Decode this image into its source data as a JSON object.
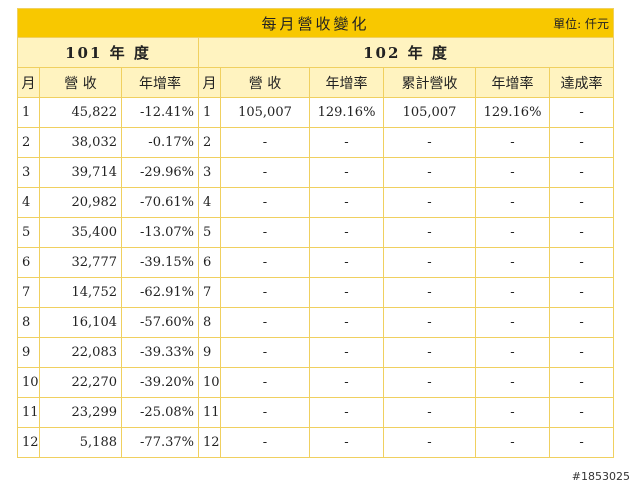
{
  "title": "每月營收變化",
  "unit": "單位: 仟元",
  "year_a": "101 年 度",
  "year_b": "102 年 度",
  "headers_a": [
    "月",
    "營 收",
    "年增率"
  ],
  "headers_b": [
    "月",
    "營 收",
    "年增率",
    "累計營收",
    "年增率",
    "達成率"
  ],
  "rows": [
    {
      "m_a": "1",
      "rev_a": "45,822",
      "yoy_a": "-12.41%",
      "m_b": "1",
      "rev_b": "105,007",
      "yoy_b": "129.16%",
      "cum_b": "105,007",
      "cum_yoy_b": "129.16%",
      "ach_b": "-"
    },
    {
      "m_a": "2",
      "rev_a": "38,032",
      "yoy_a": "-0.17%",
      "m_b": "2",
      "rev_b": "-",
      "yoy_b": "-",
      "cum_b": "-",
      "cum_yoy_b": "-",
      "ach_b": "-"
    },
    {
      "m_a": "3",
      "rev_a": "39,714",
      "yoy_a": "-29.96%",
      "m_b": "3",
      "rev_b": "-",
      "yoy_b": "-",
      "cum_b": "-",
      "cum_yoy_b": "-",
      "ach_b": "-"
    },
    {
      "m_a": "4",
      "rev_a": "20,982",
      "yoy_a": "-70.61%",
      "m_b": "4",
      "rev_b": "-",
      "yoy_b": "-",
      "cum_b": "-",
      "cum_yoy_b": "-",
      "ach_b": "-"
    },
    {
      "m_a": "5",
      "rev_a": "35,400",
      "yoy_a": "-13.07%",
      "m_b": "5",
      "rev_b": "-",
      "yoy_b": "-",
      "cum_b": "-",
      "cum_yoy_b": "-",
      "ach_b": "-"
    },
    {
      "m_a": "6",
      "rev_a": "32,777",
      "yoy_a": "-39.15%",
      "m_b": "6",
      "rev_b": "-",
      "yoy_b": "-",
      "cum_b": "-",
      "cum_yoy_b": "-",
      "ach_b": "-"
    },
    {
      "m_a": "7",
      "rev_a": "14,752",
      "yoy_a": "-62.91%",
      "m_b": "7",
      "rev_b": "-",
      "yoy_b": "-",
      "cum_b": "-",
      "cum_yoy_b": "-",
      "ach_b": "-"
    },
    {
      "m_a": "8",
      "rev_a": "16,104",
      "yoy_a": "-57.60%",
      "m_b": "8",
      "rev_b": "-",
      "yoy_b": "-",
      "cum_b": "-",
      "cum_yoy_b": "-",
      "ach_b": "-"
    },
    {
      "m_a": "9",
      "rev_a": "22,083",
      "yoy_a": "-39.33%",
      "m_b": "9",
      "rev_b": "-",
      "yoy_b": "-",
      "cum_b": "-",
      "cum_yoy_b": "-",
      "ach_b": "-"
    },
    {
      "m_a": "10",
      "rev_a": "22,270",
      "yoy_a": "-39.20%",
      "m_b": "10",
      "rev_b": "-",
      "yoy_b": "-",
      "cum_b": "-",
      "cum_yoy_b": "-",
      "ach_b": "-"
    },
    {
      "m_a": "11",
      "rev_a": "23,299",
      "yoy_a": "-25.08%",
      "m_b": "11",
      "rev_b": "-",
      "yoy_b": "-",
      "cum_b": "-",
      "cum_yoy_b": "-",
      "ach_b": "-"
    },
    {
      "m_a": "12",
      "rev_a": "5,188",
      "yoy_a": "-77.37%",
      "m_b": "12",
      "rev_b": "-",
      "yoy_b": "-",
      "cum_b": "-",
      "cum_yoy_b": "-",
      "ach_b": "-"
    }
  ],
  "watermark": "#1853025",
  "colors": {
    "title_bg": "#f8c800",
    "header_bg": "#fff3c0",
    "border": "#f0d060"
  }
}
